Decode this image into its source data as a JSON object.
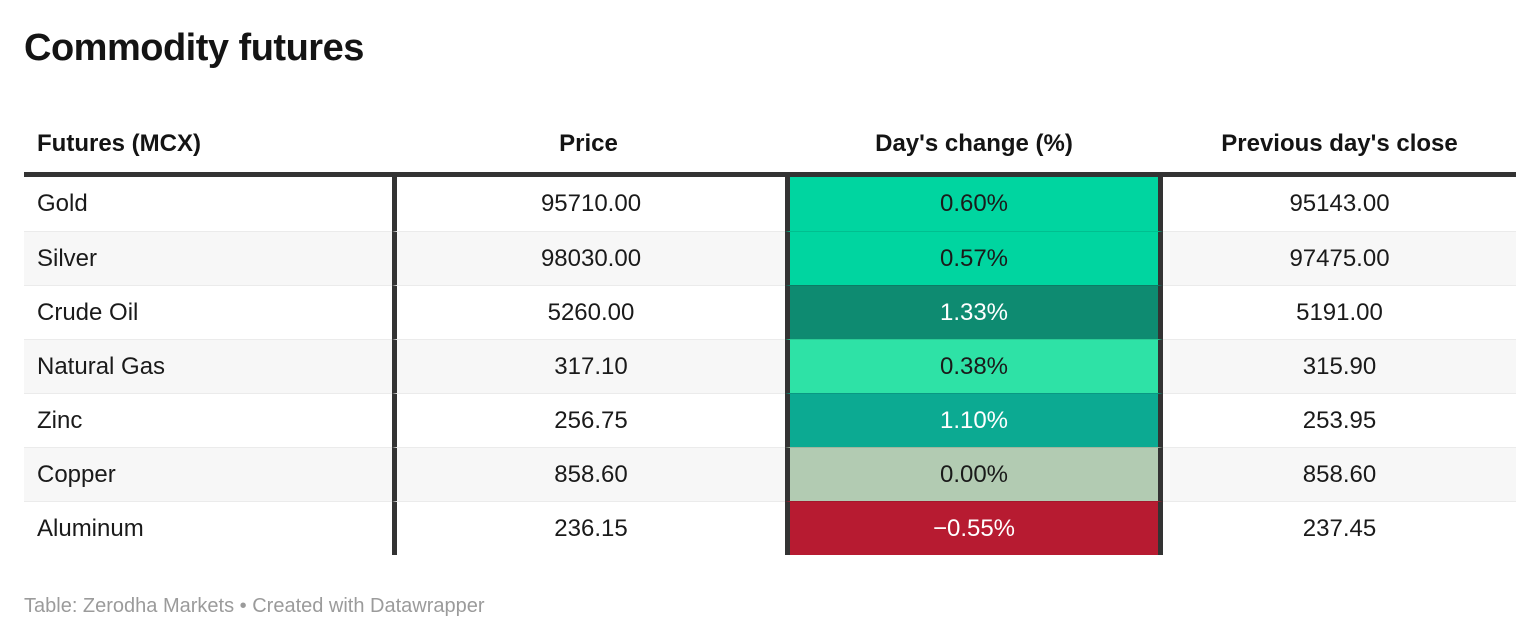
{
  "title": "Commodity futures",
  "chart_data": {
    "type": "table",
    "title": "Commodity futures",
    "columns": [
      "Futures (MCX)",
      "Price",
      "Day's change (%)",
      "Previous day's close"
    ],
    "rows": [
      {
        "future": "Gold",
        "price": "95710.00",
        "change": "0.60%",
        "change_value": 0.6,
        "prev_close": "95143.00",
        "change_bg": "#00d5a0",
        "change_fg": "#1a1a1a"
      },
      {
        "future": "Silver",
        "price": "98030.00",
        "change": "0.57%",
        "change_value": 0.57,
        "prev_close": "97475.00",
        "change_bg": "#00d5a0",
        "change_fg": "#1a1a1a"
      },
      {
        "future": "Crude Oil",
        "price": "5260.00",
        "change": "1.33%",
        "change_value": 1.33,
        "prev_close": "5191.00",
        "change_bg": "#0e8b71",
        "change_fg": "#ffffff"
      },
      {
        "future": "Natural Gas",
        "price": "317.10",
        "change": "0.38%",
        "change_value": 0.38,
        "prev_close": "315.90",
        "change_bg": "#2ee2a6",
        "change_fg": "#1a1a1a"
      },
      {
        "future": "Zinc",
        "price": "256.75",
        "change": "1.10%",
        "change_value": 1.1,
        "prev_close": "253.95",
        "change_bg": "#0caa92",
        "change_fg": "#ffffff"
      },
      {
        "future": "Copper",
        "price": "858.60",
        "change": "0.00%",
        "change_value": 0.0,
        "prev_close": "858.60",
        "change_bg": "#b2cbb2",
        "change_fg": "#1a1a1a"
      },
      {
        "future": "Aluminum",
        "price": "236.15",
        "change": "−0.55%",
        "change_value": -0.55,
        "prev_close": "237.45",
        "change_bg": "#b71b31",
        "change_fg": "#ffffff"
      }
    ]
  },
  "footer": {
    "text": "Table: Zerodha Markets • Created with Datawrapper"
  },
  "colors": {
    "strong_border": "#333333",
    "row_alt_bg": "#f7f7f7",
    "row_separator": "#ebebeb",
    "text": "#1a1a1a",
    "footer_text": "#9b9b9b",
    "positive_strong": "#0e8b71",
    "positive_bright": "#00d5a0",
    "neutral": "#b2cbb2",
    "negative": "#b71b31"
  }
}
